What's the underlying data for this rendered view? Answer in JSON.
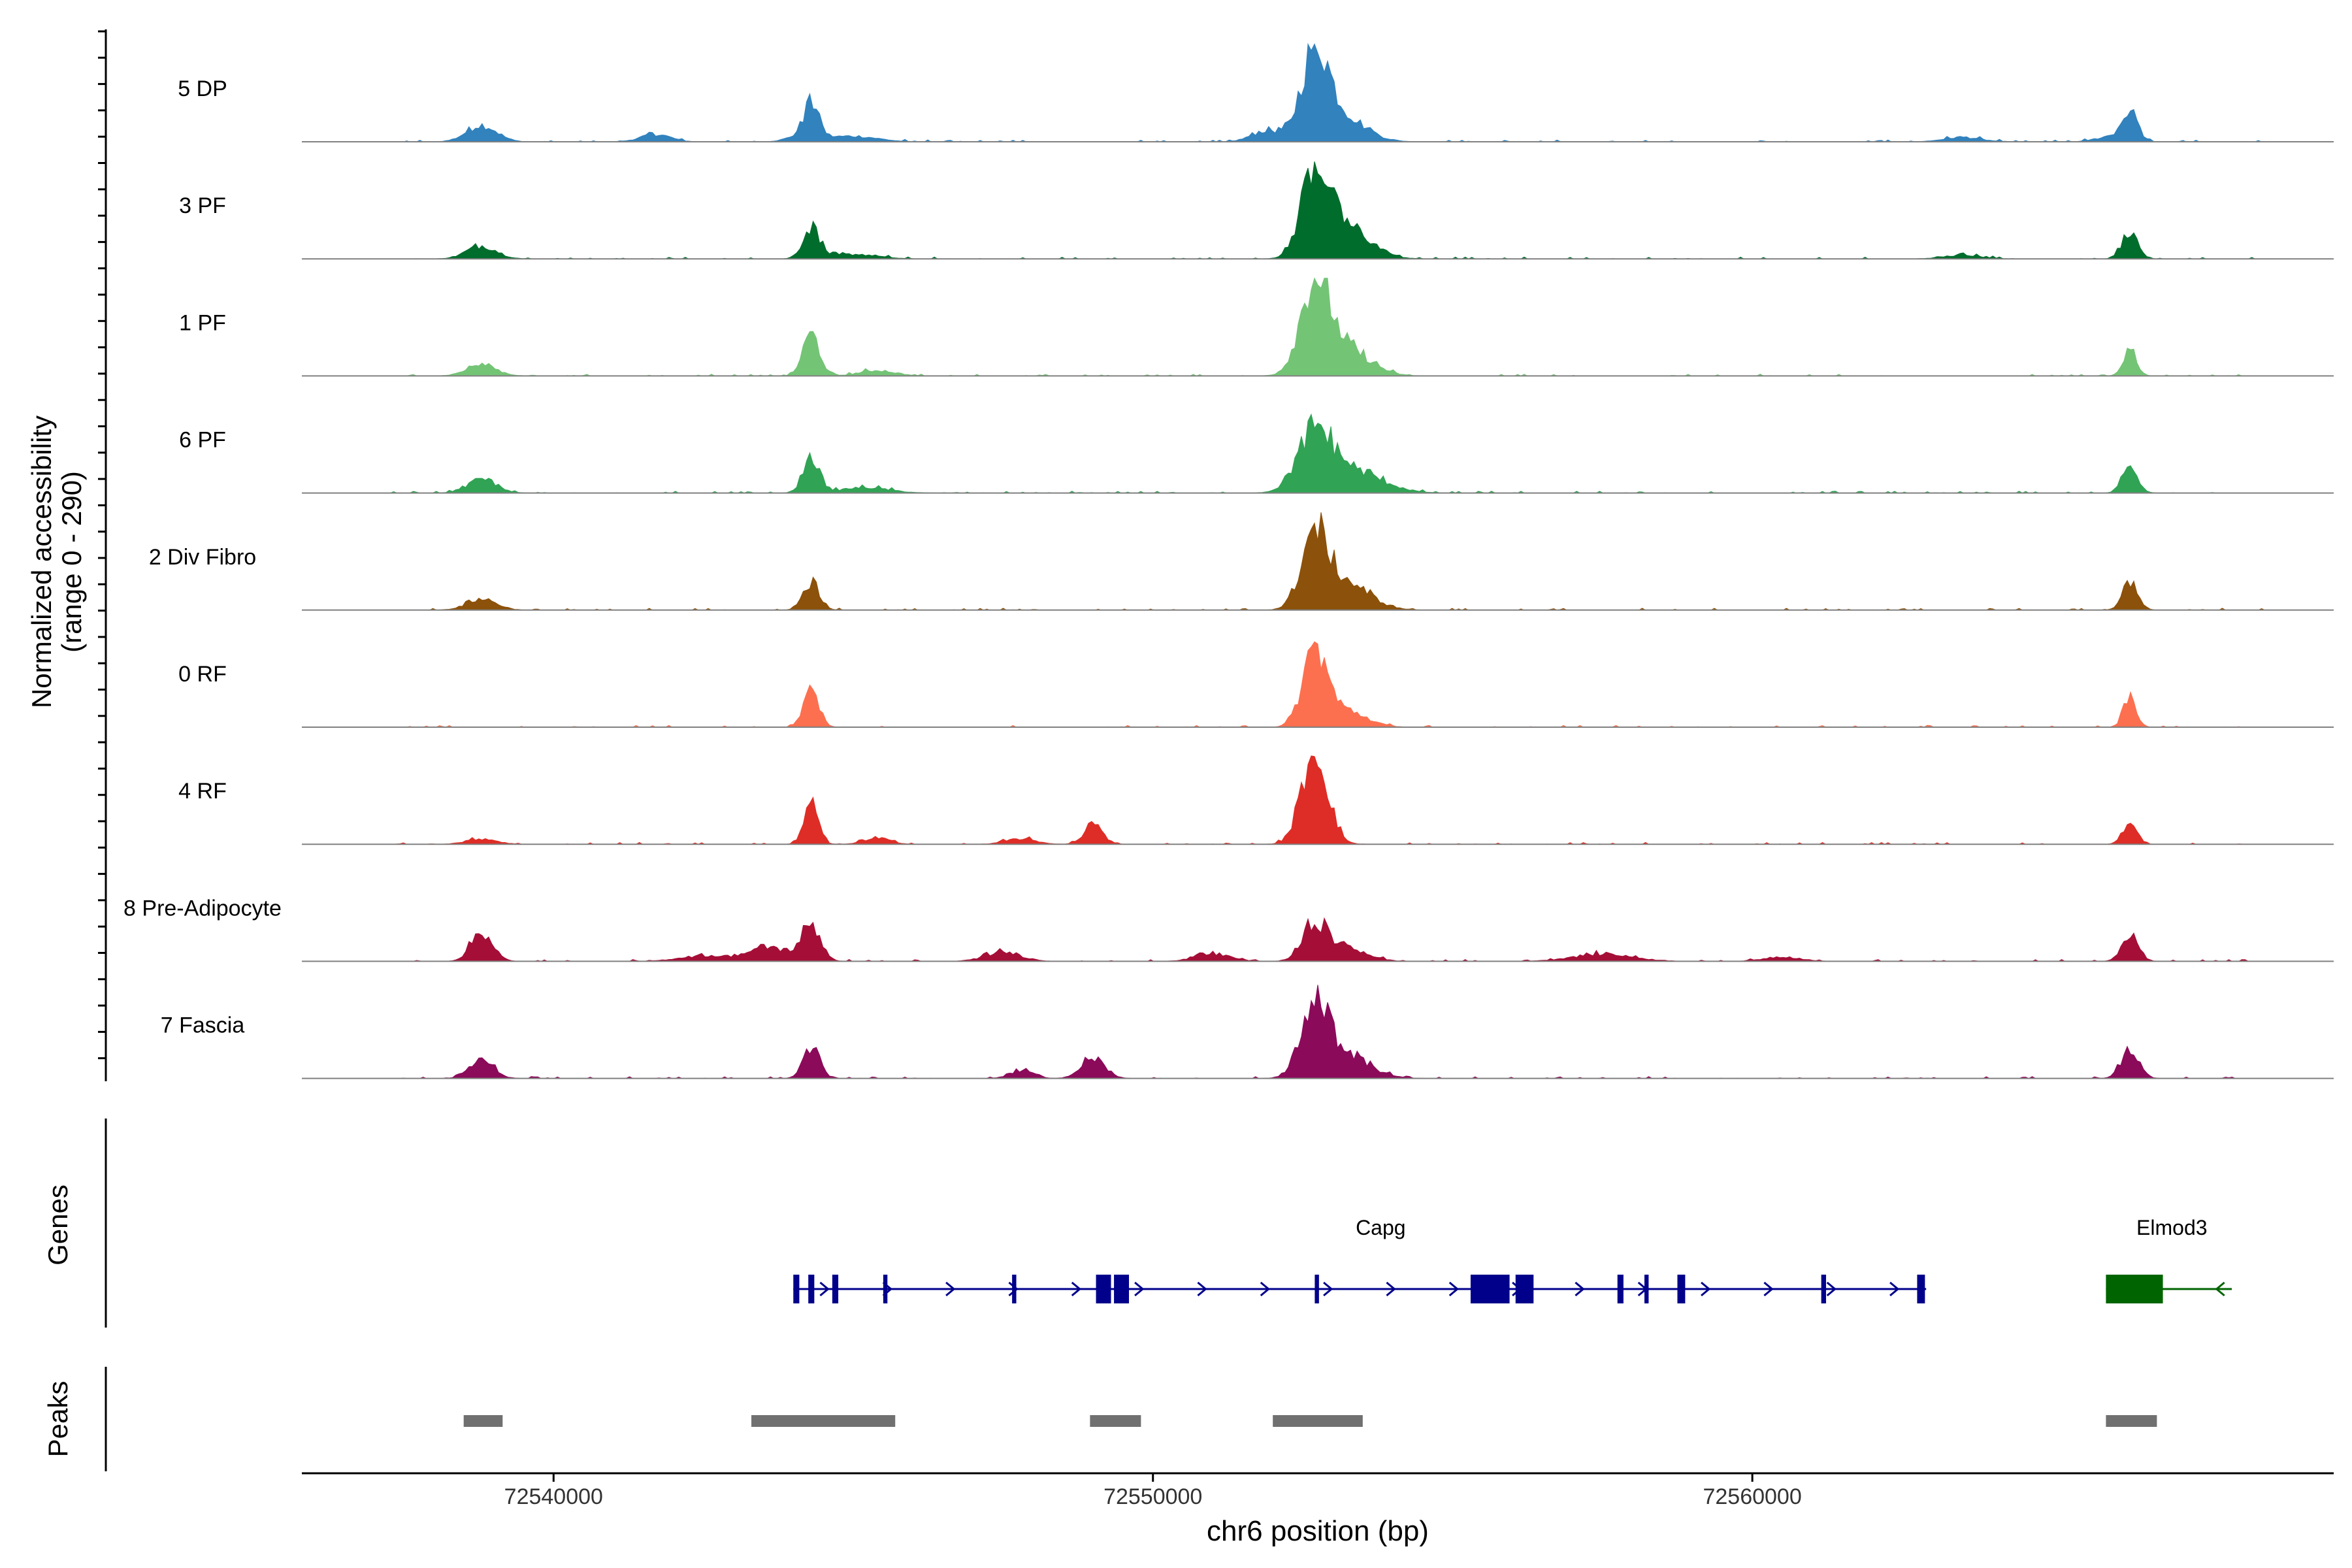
{
  "chart_data": {
    "type": "area",
    "title": "",
    "ylabel_line1": "Normalized accessibility",
    "ylabel_line2": "(range 0 - 290)",
    "xlabel": "chr6 position (bp)",
    "xlim": [
      72535800,
      72569700
    ],
    "ylim": [
      0,
      290
    ],
    "x_ticks": [
      72540000,
      72550000,
      72560000
    ],
    "x_tick_labels": [
      "72540000",
      "72550000",
      "72560000"
    ],
    "tracks": [
      {
        "name": "5 DP",
        "color": "#3182bd",
        "peaks": [
          [
            72538800,
            0.18,
            250
          ],
          [
            72541700,
            0.08,
            250
          ],
          [
            72544200,
            0.08,
            250
          ],
          [
            72544300,
            0.33,
            120
          ],
          [
            72545000,
            0.06,
            400
          ],
          [
            72552700,
            0.9,
            220
          ],
          [
            72553100,
            0.3,
            400
          ],
          [
            72551900,
            0.12,
            250
          ],
          [
            72566300,
            0.3,
            130
          ],
          [
            72566000,
            0.06,
            250
          ],
          [
            72563500,
            0.05,
            300
          ]
        ]
      },
      {
        "name": "3 PF",
        "color": "#006d2c",
        "peaks": [
          [
            72538800,
            0.14,
            250
          ],
          [
            72544300,
            0.33,
            140
          ],
          [
            72545000,
            0.05,
            400
          ],
          [
            72552700,
            0.9,
            220
          ],
          [
            72553200,
            0.35,
            400
          ],
          [
            72566300,
            0.3,
            130
          ],
          [
            72563500,
            0.04,
            300
          ]
        ]
      },
      {
        "name": "1 PF",
        "color": "#74c476",
        "peaks": [
          [
            72538800,
            0.12,
            250
          ],
          [
            72544300,
            0.45,
            140
          ],
          [
            72545400,
            0.06,
            300
          ],
          [
            72552700,
            0.95,
            240
          ],
          [
            72553200,
            0.3,
            400
          ],
          [
            72566300,
            0.3,
            110
          ]
        ]
      },
      {
        "name": "6 PF",
        "color": "#31a354",
        "peaks": [
          [
            72538800,
            0.14,
            250
          ],
          [
            72544300,
            0.35,
            140
          ],
          [
            72545200,
            0.06,
            400
          ],
          [
            72552700,
            0.6,
            280
          ],
          [
            72553300,
            0.25,
            500
          ],
          [
            72566300,
            0.28,
            130
          ]
        ]
      },
      {
        "name": "2 Div Fibro",
        "color": "#8c510a",
        "peaks": [
          [
            72538800,
            0.12,
            250
          ],
          [
            72544300,
            0.3,
            140
          ],
          [
            72552700,
            0.75,
            220
          ],
          [
            72553200,
            0.3,
            400
          ],
          [
            72566300,
            0.28,
            130
          ]
        ]
      },
      {
        "name": "0 RF",
        "color": "#fc7050",
        "peaks": [
          [
            72544300,
            0.4,
            130
          ],
          [
            72552700,
            0.8,
            200
          ],
          [
            72553200,
            0.18,
            350
          ],
          [
            72566300,
            0.3,
            110
          ]
        ]
      },
      {
        "name": "4 RF",
        "color": "#de2d26",
        "peaks": [
          [
            72538800,
            0.06,
            250
          ],
          [
            72544300,
            0.42,
            120
          ],
          [
            72545400,
            0.08,
            200
          ],
          [
            72549000,
            0.2,
            160
          ],
          [
            72547800,
            0.06,
            250
          ],
          [
            72552700,
            1.0,
            220
          ],
          [
            72566300,
            0.22,
            120
          ]
        ]
      },
      {
        "name": "8 Pre-Adipocyte",
        "color": "#a50f37",
        "peaks": [
          [
            72538800,
            0.32,
            180
          ],
          [
            72544300,
            0.38,
            160
          ],
          [
            72543600,
            0.15,
            350
          ],
          [
            72552700,
            0.38,
            200
          ],
          [
            72553200,
            0.15,
            350
          ],
          [
            72566300,
            0.3,
            140
          ],
          [
            72547500,
            0.1,
            300
          ],
          [
            72551000,
            0.08,
            300
          ],
          [
            72557500,
            0.08,
            500
          ],
          [
            72542500,
            0.06,
            400
          ],
          [
            72560500,
            0.05,
            300
          ]
        ]
      },
      {
        "name": "7 Fascia",
        "color": "#8b0a5a",
        "peaks": [
          [
            72538800,
            0.2,
            200
          ],
          [
            72544300,
            0.33,
            140
          ],
          [
            72549000,
            0.22,
            200
          ],
          [
            72547800,
            0.08,
            200
          ],
          [
            72552700,
            0.7,
            230
          ],
          [
            72553200,
            0.25,
            400
          ],
          [
            72566300,
            0.3,
            150
          ]
        ]
      }
    ],
    "genes": [
      {
        "name": "Capg",
        "strand": "+",
        "color": "#00008b",
        "start": 72544000,
        "end": 72562900,
        "label_x": 72553800,
        "exons": [
          [
            72544000,
            72544100
          ],
          [
            72544250,
            72544350
          ],
          [
            72544650,
            72544750
          ],
          [
            72545500,
            72545570
          ],
          [
            72547650,
            72547720
          ],
          [
            72549050,
            72549300
          ],
          [
            72549350,
            72549600
          ],
          [
            72552700,
            72552770
          ],
          [
            72555300,
            72555950
          ],
          [
            72556050,
            72556350
          ],
          [
            72557750,
            72557850
          ],
          [
            72558200,
            72558270
          ],
          [
            72558750,
            72558880
          ],
          [
            72561150,
            72561230
          ],
          [
            72562750,
            72562880
          ]
        ]
      },
      {
        "name": "Elmod3",
        "strand": "-",
        "color": "#006400",
        "start": 72565900,
        "end": 72568000,
        "label_x": 72567000,
        "exons": [
          [
            72565900,
            72566850
          ]
        ]
      }
    ],
    "peaks_track": [
      [
        72538500,
        72539150
      ],
      [
        72543300,
        72545700
      ],
      [
        72548950,
        72549800
      ],
      [
        72552000,
        72553500
      ],
      [
        72565900,
        72566750
      ]
    ],
    "gene_track_label": "Genes",
    "peaks_track_label": "Peaks"
  },
  "colors": {
    "axis": "#000000",
    "baseline": "#808080",
    "peak_bar": "#707070"
  }
}
